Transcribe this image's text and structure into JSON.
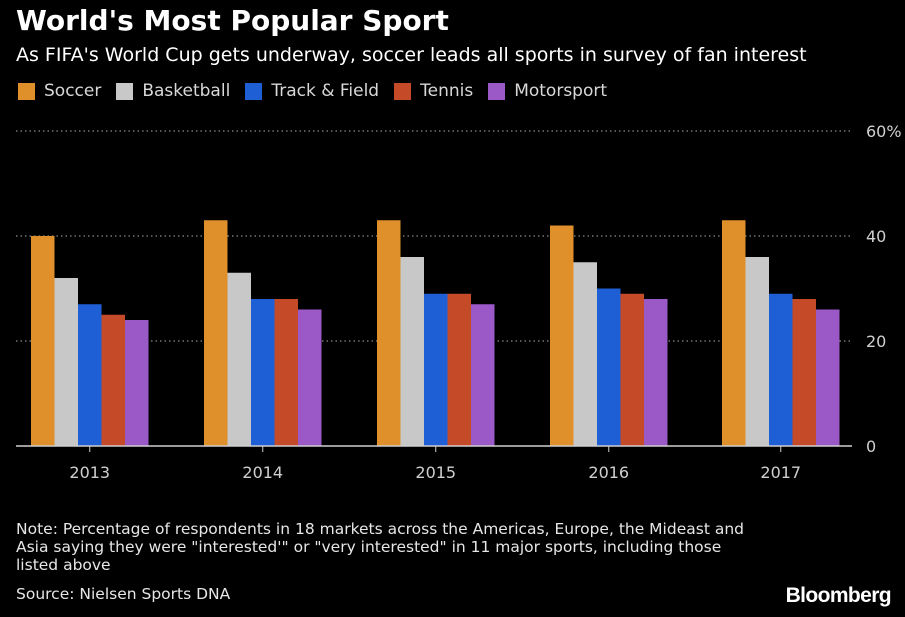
{
  "header": {
    "title": "World's Most Popular Sport",
    "subtitle": "As FIFA's World Cup gets underway, soccer leads all sports in survey of fan interest"
  },
  "footer": {
    "note": "Note: Percentage of respondents in 18 markets across the Americas, Europe, the Mideast and Asia saying they were \"interested'\" or \"very interested\" in 11 major sports, including those listed above",
    "source": "Source: Nielsen Sports DNA",
    "brand": "Bloomberg"
  },
  "chart_data": {
    "type": "bar",
    "title": "World's Most Popular Sport",
    "subtitle": "As FIFA's World Cup gets underway, soccer leads all sports in survey of fan interest",
    "categories": [
      "2013",
      "2014",
      "2015",
      "2016",
      "2017"
    ],
    "series": [
      {
        "name": "Soccer",
        "color": "#e0902a",
        "values": [
          40,
          43,
          43,
          42,
          43
        ]
      },
      {
        "name": "Basketball",
        "color": "#c8c8c8",
        "values": [
          32,
          33,
          36,
          35,
          36
        ]
      },
      {
        "name": "Track & Field",
        "color": "#1f5fd6",
        "values": [
          27,
          28,
          29,
          30,
          29
        ]
      },
      {
        "name": "Tennis",
        "color": "#c44a28",
        "values": [
          25,
          28,
          29,
          29,
          28
        ]
      },
      {
        "name": "Motorsport",
        "color": "#9b59c7",
        "values": [
          24,
          26,
          27,
          28,
          26
        ]
      }
    ],
    "yticks": [
      {
        "value": 0,
        "label": "0"
      },
      {
        "value": 20,
        "label": "20"
      },
      {
        "value": 40,
        "label": "40"
      },
      {
        "value": 60,
        "label": "60%"
      }
    ],
    "ylim": [
      0,
      60
    ],
    "xlabel": "",
    "ylabel": "",
    "grid": true,
    "y_axis_position": "right",
    "legend_position": "top-left"
  }
}
